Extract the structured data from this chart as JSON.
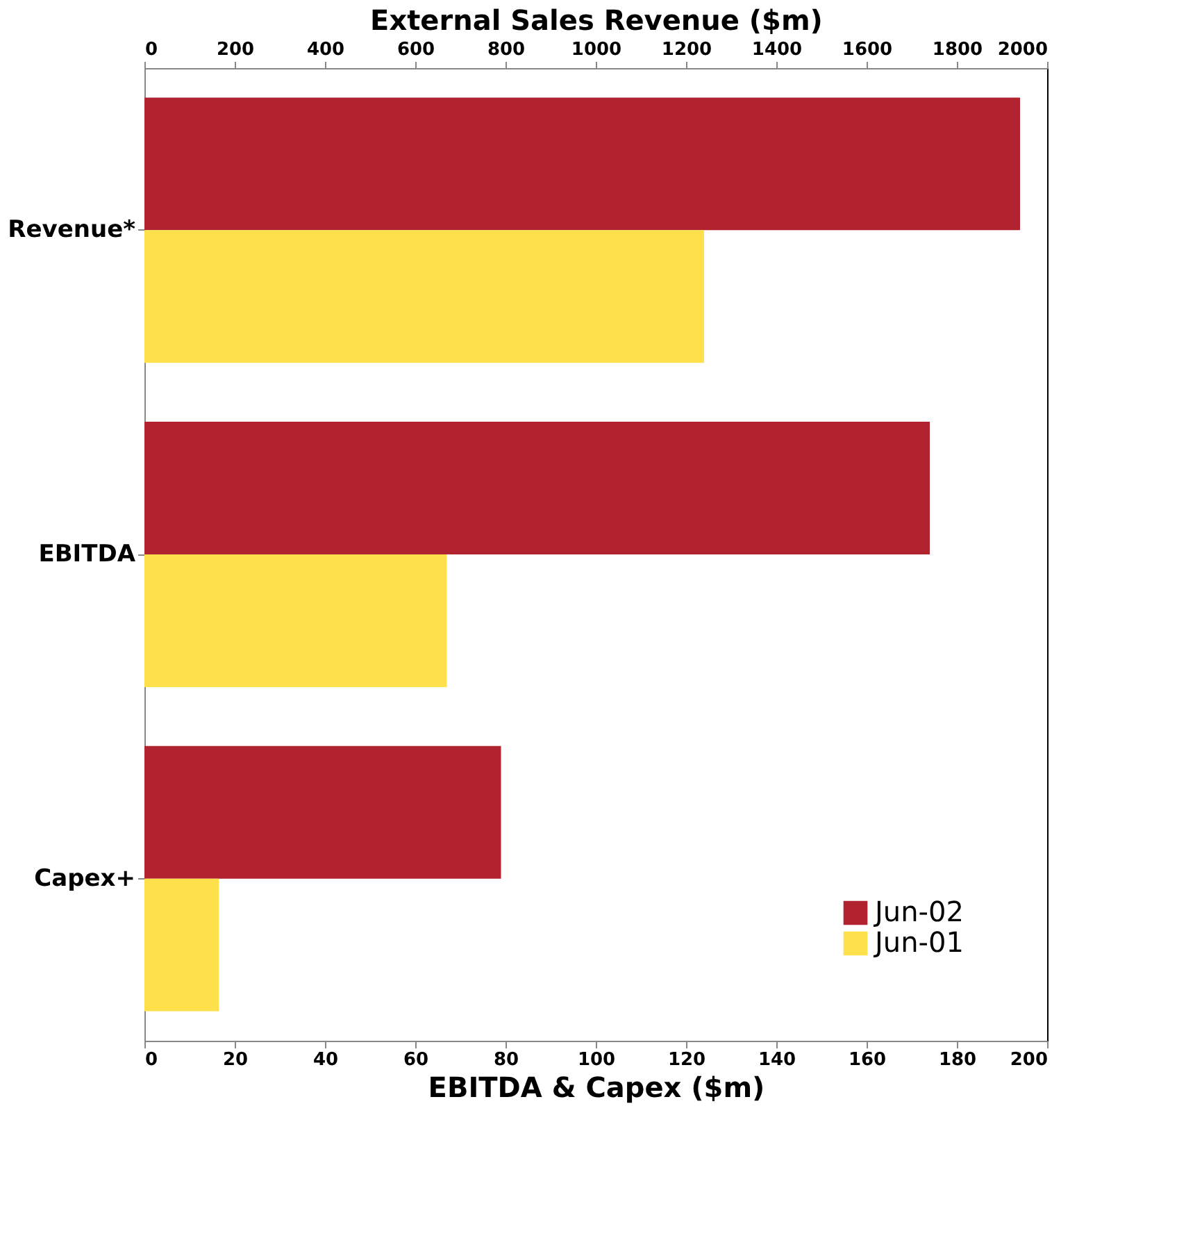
{
  "chart_data": {
    "type": "bar",
    "orientation": "horizontal",
    "categories": [
      "Revenue*",
      "EBITDA",
      "Capex+"
    ],
    "series": [
      {
        "color": "#b0232f",
        "values": [
          1940,
          null,
          null
        ],
        "axis": "x2"
      },
      {
        "color": "#fde04a",
        "values": [
          1240,
          null,
          null
        ],
        "axis": "x2"
      },
      {
        "name": "Jun-02",
        "color": "#b0232f",
        "values": [
          null,
          174,
          79
        ]
      },
      {
        "name": "Jun-01",
        "color": "#fde04a",
        "values": [
          null,
          67,
          16.5
        ]
      }
    ],
    "xlabel": "EBITDA & Capex ($m)",
    "xlim": [
      0,
      200
    ],
    "xticks": [
      0,
      20,
      40,
      60,
      80,
      100,
      120,
      140,
      160,
      180,
      200
    ],
    "x2label": "External Sales Revenue ($m)",
    "x2lim": [
      0,
      2000
    ],
    "x2ticks": [
      0,
      200,
      400,
      600,
      800,
      1000,
      1200,
      1400,
      1600,
      1800,
      2000
    ],
    "legend": "bottom right",
    "grid": false
  }
}
